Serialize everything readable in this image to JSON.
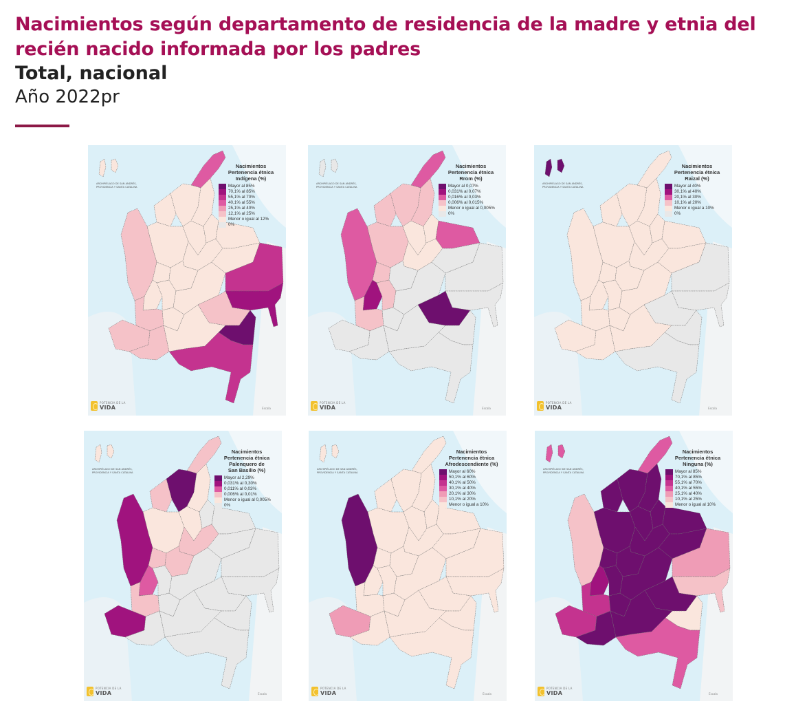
{
  "header": {
    "title": "Nacimientos según departamento de residencia de la madre y etnia del recién nacido informada por los padres",
    "subtitle": "Total, nacional",
    "year": "Año 2022pr",
    "accent_color": "#8c1846",
    "title_color": "#a50f55"
  },
  "common": {
    "logo_small": "POTENCIA DE LA",
    "logo_big": "VIDA",
    "scale_text": "Escala",
    "inset_label": "ARCHIPIÉLAGO DE SAN ANDRÉS, PROVIDENCIA Y SANTA CATALINA",
    "sea_color": "#dcf0f8",
    "border_color": "#7a7a7a"
  },
  "panels": [
    {
      "id": "indigena",
      "legend_title": [
        "Nacimientos",
        "Pertenencia étnica",
        "Indígena (%)"
      ],
      "legend": [
        {
          "label": "Mayor al 85%",
          "color": "#6e0f6e"
        },
        {
          "label": "70,1% al 85%",
          "color": "#a0137e"
        },
        {
          "label": "55,1% al 70%",
          "color": "#c4338f"
        },
        {
          "label": "40,1% al 55%",
          "color": "#de5aa2"
        },
        {
          "label": "25,1% al 40%",
          "color": "#ef9cb6"
        },
        {
          "label": "12,1% al 25%",
          "color": "#f5c2c8"
        },
        {
          "label": "Menor o igual al 12%",
          "color": "#fae6dd"
        },
        {
          "label": "0%",
          "color": "#e8e8e8"
        }
      ],
      "regions": {
        "sanandres": "#fae6dd",
        "guajira": "#de5aa2",
        "caribe": "#fae6dd",
        "cesar": "#fae6dd",
        "cordoba": "#fae6dd",
        "antioquia": "#fae6dd",
        "choco": "#f5c2c8",
        "santander": "#fae6dd",
        "nortesantander": "#fae6dd",
        "arauca": "#fae6dd",
        "casanare": "#fae6dd",
        "boyaca": "#fae6dd",
        "eje": "#fae6dd",
        "cundinamarca": "#fae6dd",
        "valle": "#fae6dd",
        "tolima": "#fae6dd",
        "cauca": "#f5c2c8",
        "narino": "#f5c2c8",
        "huila": "#fae6dd",
        "meta": "#fae6dd",
        "vichada": "#c4338f",
        "guainia": "#a0137e",
        "guaviare": "#f5c2c8",
        "vaupes": "#6e0f6e",
        "caqueta": "#fae6dd",
        "putumayo": "#f5c2c8",
        "amazonas": "#c4338f"
      }
    },
    {
      "id": "rrom",
      "legend_title": [
        "Nacimientos",
        "Pertenencia étnica",
        "Rrom (%)"
      ],
      "legend": [
        {
          "label": "Mayor al 0,07%",
          "color": "#6e0f6e"
        },
        {
          "label": "0,031% al 0,07%",
          "color": "#a0137e"
        },
        {
          "label": "0,016% al 0,03%",
          "color": "#de5aa2"
        },
        {
          "label": "0,006% al 0,015%",
          "color": "#f5c2c8"
        },
        {
          "label": "Menor o igual al 0,005%",
          "color": "#fae6dd"
        },
        {
          "label": "0%",
          "color": "#e8e8e8"
        }
      ],
      "regions": {
        "sanandres": "#e8e8e8",
        "guajira": "#de5aa2",
        "caribe": "#f5c2c8",
        "cesar": "#f5c2c8",
        "cordoba": "#f5c2c8",
        "antioquia": "#f5c2c8",
        "choco": "#de5aa2",
        "santander": "#fae6dd",
        "nortesantander": "#fae6dd",
        "arauca": "#de5aa2",
        "casanare": "#e8e8e8",
        "boyaca": "#fae6dd",
        "eje": "#f5c2c8",
        "cundinamarca": "#e8e8e8",
        "valle": "#a0137e",
        "tolima": "#f5c2c8",
        "cauca": "#f5c2c8",
        "narino": "#e8e8e8",
        "huila": "#e8e8e8",
        "meta": "#e8e8e8",
        "vichada": "#e8e8e8",
        "guainia": "#e8e8e8",
        "guaviare": "#6e0f6e",
        "vaupes": "#e8e8e8",
        "caqueta": "#e8e8e8",
        "putumayo": "#e8e8e8",
        "amazonas": "#e8e8e8"
      }
    },
    {
      "id": "raizal",
      "legend_title": [
        "Nacimientos",
        "Pertenencia étnica",
        "Raizal (%)"
      ],
      "legend": [
        {
          "label": "Mayor al 40%",
          "color": "#6e0f6e"
        },
        {
          "label": "30,1% al 40%",
          "color": "#a0137e"
        },
        {
          "label": "20,1% al 30%",
          "color": "#de5aa2"
        },
        {
          "label": "10,1% al 20%",
          "color": "#f5c2c8"
        },
        {
          "label": "Menor o igual a 10%",
          "color": "#fae6dd"
        },
        {
          "label": "0%",
          "color": "#e8e8e8"
        }
      ],
      "regions": {
        "sanandres": "#6e0f6e",
        "guajira": "#fae6dd",
        "caribe": "#fae6dd",
        "cesar": "#fae6dd",
        "cordoba": "#fae6dd",
        "antioquia": "#fae6dd",
        "choco": "#fae6dd",
        "santander": "#fae6dd",
        "nortesantander": "#fae6dd",
        "arauca": "#fae6dd",
        "casanare": "#fae6dd",
        "boyaca": "#fae6dd",
        "eje": "#fae6dd",
        "cundinamarca": "#fae6dd",
        "valle": "#fae6dd",
        "tolima": "#fae6dd",
        "cauca": "#fae6dd",
        "narino": "#fae6dd",
        "huila": "#fae6dd",
        "meta": "#fae6dd",
        "vichada": "#e8e8e8",
        "guainia": "#e8e8e8",
        "guaviare": "#e8e8e8",
        "vaupes": "#e8e8e8",
        "caqueta": "#fae6dd",
        "putumayo": "#fae6dd",
        "amazonas": "#e8e8e8"
      }
    },
    {
      "id": "palenquero",
      "legend_title": [
        "Nacimientos",
        "Pertenencia étnica",
        "Palenquero de",
        "San Basilio (%)"
      ],
      "legend": [
        {
          "label": "Mayor al 2,29%",
          "color": "#6e0f6e"
        },
        {
          "label": "0,031% al 0,30%",
          "color": "#a0137e"
        },
        {
          "label": "0,011% al 0,03%",
          "color": "#de5aa2"
        },
        {
          "label": "0,006% al 0,01%",
          "color": "#f5c2c8"
        },
        {
          "label": "Menor o igual al 0,005%",
          "color": "#fae6dd"
        },
        {
          "label": "0%",
          "color": "#e8e8e8"
        }
      ],
      "regions": {
        "sanandres": "#fae6dd",
        "guajira": "#f5c2c8",
        "caribe": "#6e0f6e",
        "cesar": "#fae6dd",
        "cordoba": "#f5c2c8",
        "antioquia": "#fae6dd",
        "choco": "#a0137e",
        "santander": "#fae6dd",
        "nortesantander": "#e8e8e8",
        "arauca": "#e8e8e8",
        "casanare": "#e8e8e8",
        "boyaca": "#f5c2c8",
        "eje": "#f5c2c8",
        "cundinamarca": "#f5c2c8",
        "valle": "#de5aa2",
        "tolima": "#e8e8e8",
        "cauca": "#f5c2c8",
        "narino": "#a0137e",
        "huila": "#e8e8e8",
        "meta": "#e8e8e8",
        "vichada": "#e8e8e8",
        "guainia": "#e8e8e8",
        "guaviare": "#e8e8e8",
        "vaupes": "#e8e8e8",
        "caqueta": "#e8e8e8",
        "putumayo": "#e8e8e8",
        "amazonas": "#e8e8e8"
      }
    },
    {
      "id": "afrodescendiente",
      "legend_title": [
        "Nacimientos",
        "Pertenencia étnica",
        "Afrodescendiente (%)"
      ],
      "legend": [
        {
          "label": "Mayor al 60%",
          "color": "#6e0f6e"
        },
        {
          "label": "50,1% al 60%",
          "color": "#a0137e"
        },
        {
          "label": "40,1% al 50%",
          "color": "#c4338f"
        },
        {
          "label": "30,1% al 40%",
          "color": "#de5aa2"
        },
        {
          "label": "20,1% al 30%",
          "color": "#ef9cb6"
        },
        {
          "label": "10,1% al 20%",
          "color": "#f5c2c8"
        },
        {
          "label": "Menor o igual a 10%",
          "color": "#fae6dd"
        }
      ],
      "regions": {
        "sanandres": "#fae6dd",
        "guajira": "#fae6dd",
        "caribe": "#fae6dd",
        "cesar": "#fae6dd",
        "cordoba": "#fae6dd",
        "antioquia": "#fae6dd",
        "choco": "#6e0f6e",
        "santander": "#fae6dd",
        "nortesantander": "#fae6dd",
        "arauca": "#fae6dd",
        "casanare": "#fae6dd",
        "boyaca": "#fae6dd",
        "eje": "#fae6dd",
        "cundinamarca": "#fae6dd",
        "valle": "#fae6dd",
        "tolima": "#fae6dd",
        "cauca": "#fae6dd",
        "narino": "#ef9cb6",
        "huila": "#fae6dd",
        "meta": "#fae6dd",
        "vichada": "#fae6dd",
        "guainia": "#fae6dd",
        "guaviare": "#fae6dd",
        "vaupes": "#fae6dd",
        "caqueta": "#fae6dd",
        "putumayo": "#fae6dd",
        "amazonas": "#fae6dd"
      }
    },
    {
      "id": "ninguna",
      "legend_title": [
        "Nacimientos",
        "Pertenencia étnica",
        "Ninguna (%)"
      ],
      "legend": [
        {
          "label": "Mayor al 85%",
          "color": "#6e0f6e"
        },
        {
          "label": "70,1% al 85%",
          "color": "#a0137e"
        },
        {
          "label": "55,1% al 70%",
          "color": "#c4338f"
        },
        {
          "label": "40,1% al 55%",
          "color": "#de5aa2"
        },
        {
          "label": "25,1% al 40%",
          "color": "#ef9cb6"
        },
        {
          "label": "10,1% al 25%",
          "color": "#f5c2c8"
        },
        {
          "label": "Menor o igual al 10%",
          "color": "#fae6dd"
        }
      ],
      "regions": {
        "sanandres": "#de5aa2",
        "guajira": "#de5aa2",
        "caribe": "#6e0f6e",
        "cesar": "#6e0f6e",
        "cordoba": "#6e0f6e",
        "antioquia": "#6e0f6e",
        "choco": "#f5c2c8",
        "santander": "#6e0f6e",
        "nortesantander": "#6e0f6e",
        "arauca": "#6e0f6e",
        "casanare": "#6e0f6e",
        "boyaca": "#6e0f6e",
        "eje": "#6e0f6e",
        "cundinamarca": "#6e0f6e",
        "valle": "#a0137e",
        "tolima": "#6e0f6e",
        "cauca": "#c4338f",
        "narino": "#c4338f",
        "huila": "#6e0f6e",
        "meta": "#6e0f6e",
        "vichada": "#ef9cb6",
        "guainia": "#f5c2c8",
        "guaviare": "#6e0f6e",
        "vaupes": "#fae6dd",
        "caqueta": "#6e0f6e",
        "putumayo": "#6e0f6e",
        "amazonas": "#de5aa2"
      }
    }
  ],
  "chart_data": {
    "type": "heatmap",
    "title": "Nacimientos según departamento de residencia de la madre y etnia del recién nacido informada por los padres",
    "subtitle": "Total, nacional — Año 2022pr",
    "maps": [
      {
        "name": "Indígena (%)",
        "bins": [
          "Mayor al 85%",
          "70,1% al 85%",
          "55,1% al 70%",
          "40,1% al 55%",
          "25,1% al 40%",
          "12,1% al 25%",
          "Menor o igual al 12%",
          "0%"
        ],
        "highlighted": {
          "Vaupés": "Mayor al 85%",
          "Guainía": "70,1% al 85%",
          "Vichada": "55,1% al 70%",
          "Amazonas": "55,1% al 70%",
          "La Guajira": "40,1% al 55%"
        }
      },
      {
        "name": "Rrom (%)",
        "bins": [
          "Mayor al 0,07%",
          "0,031% al 0,07%",
          "0,016% al 0,03%",
          "0,006% al 0,015%",
          "Menor o igual al 0,005%",
          "0%"
        ],
        "highlighted": {
          "Guaviare": "Mayor al 0,07%",
          "Valle del Cauca": "0,031% al 0,07%",
          "Arauca": "0,016% al 0,03%",
          "La Guajira": "0,016% al 0,03%",
          "Chocó": "0,016% al 0,03%"
        }
      },
      {
        "name": "Raizal (%)",
        "bins": [
          "Mayor al 40%",
          "30,1% al 40%",
          "20,1% al 30%",
          "10,1% al 20%",
          "Menor o igual a 10%",
          "0%"
        ],
        "highlighted": {
          "San Andrés": "Mayor al 40%"
        }
      },
      {
        "name": "Palenquero de San Basilio (%)",
        "bins": [
          "Mayor al 2,29%",
          "0,031% al 0,30%",
          "0,011% al 0,03%",
          "0,006% al 0,01%",
          "Menor o igual al 0,005%",
          "0%"
        ],
        "highlighted": {
          "Bolívar": "Mayor al 2,29%",
          "Chocó": "0,031% al 0,30%",
          "Nariño": "0,031% al 0,30%",
          "Valle del Cauca": "0,011% al 0,03%"
        }
      },
      {
        "name": "Afrodescendiente (%)",
        "bins": [
          "Mayor al 60%",
          "50,1% al 60%",
          "40,1% al 50%",
          "30,1% al 40%",
          "20,1% al 30%",
          "10,1% al 20%",
          "Menor o igual a 10%"
        ],
        "highlighted": {
          "Chocó": "Mayor al 60%",
          "Nariño": "20,1% al 30%"
        }
      },
      {
        "name": "Ninguna (%)",
        "bins": [
          "Mayor al 85%",
          "70,1% al 85%",
          "55,1% al 70%",
          "40,1% al 55%",
          "25,1% al 40%",
          "10,1% al 25%",
          "Menor o igual al 10%"
        ],
        "highlighted": {
          "Most Andean/Caribbean departments": "Mayor al 85%",
          "Valle del Cauca": "70,1% al 85%",
          "Cauca": "55,1% al 70%",
          "Nariño": "55,1% al 70%",
          "Amazonas": "40,1% al 55%",
          "La Guajira": "40,1% al 55%",
          "Vichada": "25,1% al 40%",
          "Guainía": "10,1% al 25%",
          "Chocó": "10,1% al 25%",
          "Vaupés": "Menor o igual al 10%"
        }
      }
    ]
  }
}
